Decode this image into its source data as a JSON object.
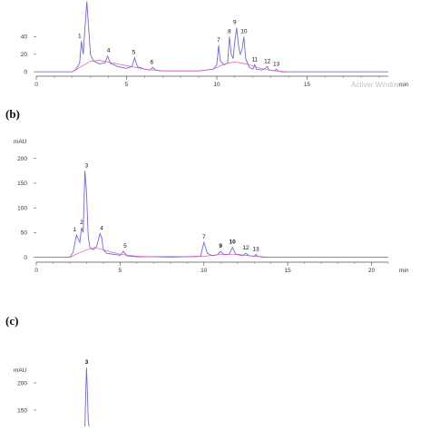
{
  "colors": {
    "trace": "#6b6be0",
    "baseline": "#e05aa8",
    "axis": "#555555",
    "text": "#111111",
    "highlight": "#2f8f8a"
  },
  "watermark": "Activer Windows",
  "chart_data": [
    {
      "type": "line",
      "panel_label": "",
      "yunit": "",
      "xunit": "min",
      "xlim": [
        0,
        19.5
      ],
      "ylim": [
        -5,
        90
      ],
      "xticks": [
        0,
        5,
        10,
        15
      ],
      "yticks": [
        0,
        20,
        40
      ],
      "series": [
        {
          "x": [
            0,
            1,
            2,
            2.2,
            2.4,
            2.5,
            2.6,
            2.7,
            2.8,
            2.9,
            3.0,
            3.1,
            3.2,
            3.5,
            3.8,
            3.95,
            4.1,
            4.5,
            5.0,
            5.3,
            5.45,
            5.6,
            6.0,
            6.3,
            6.45,
            6.6,
            7,
            9,
            9.8,
            10.0,
            10.1,
            10.2,
            10.4,
            10.6,
            10.7,
            10.8,
            10.9,
            11.0,
            11.1,
            11.2,
            11.3,
            11.4,
            11.5,
            11.6,
            11.8,
            12.0,
            12.1,
            12.2,
            12.5,
            12.7,
            12.8,
            12.9,
            13.2,
            13.3,
            13.4,
            13.6,
            14,
            17,
            19.5
          ],
          "y": [
            0,
            0,
            0,
            3,
            10,
            35,
            20,
            50,
            80,
            50,
            20,
            15,
            12,
            9,
            10,
            18,
            10,
            6,
            4,
            6,
            16,
            6,
            3,
            2,
            5,
            2,
            1,
            1,
            3,
            8,
            30,
            12,
            8,
            10,
            40,
            20,
            15,
            35,
            50,
            30,
            20,
            25,
            40,
            15,
            5,
            3,
            8,
            3,
            2,
            4,
            6,
            2,
            1,
            3,
            1,
            0,
            0,
            0,
            0
          ]
        },
        {
          "x": [
            0,
            2,
            2.5,
            3,
            3.5,
            4,
            5,
            6,
            7,
            9,
            9.8,
            10.2,
            10.6,
            11,
            11.4,
            11.8,
            12.4,
            13.2,
            14,
            19.5
          ],
          "y": [
            0,
            0,
            6,
            12,
            13,
            11,
            7,
            3,
            1,
            1,
            3,
            7,
            10,
            11,
            10,
            8,
            4,
            1,
            0,
            0
          ]
        }
      ],
      "peaks": [
        {
          "label": "1",
          "x": 2.4,
          "y": 35
        },
        {
          "label": "4",
          "x": 4.0,
          "y": 18
        },
        {
          "label": "5",
          "x": 5.4,
          "y": 16
        },
        {
          "label": "6",
          "x": 6.4,
          "y": 5
        },
        {
          "label": "7",
          "x": 10.1,
          "y": 30
        },
        {
          "label": "8",
          "x": 10.7,
          "y": 40
        },
        {
          "label": "9",
          "x": 11.0,
          "y": 50
        },
        {
          "label": "10",
          "x": 11.5,
          "y": 40
        },
        {
          "label": "11",
          "x": 12.1,
          "y": 8
        },
        {
          "label": "12",
          "x": 12.8,
          "y": 6
        },
        {
          "label": "13",
          "x": 13.3,
          "y": 3
        }
      ]
    },
    {
      "type": "line",
      "panel_label": "(b)",
      "yunit": "mAU",
      "xunit": "min",
      "xlim": [
        0,
        21
      ],
      "ylim": [
        -10,
        205
      ],
      "xticks": [
        0,
        5,
        10,
        15,
        20
      ],
      "yticks": [
        0,
        50,
        100,
        150,
        200
      ],
      "series": [
        {
          "x": [
            0,
            1,
            2,
            2.2,
            2.4,
            2.6,
            2.7,
            2.8,
            2.9,
            3.0,
            3.1,
            3.2,
            3.4,
            3.6,
            3.8,
            3.9,
            4.0,
            4.2,
            5.0,
            5.2,
            5.4,
            6,
            9,
            9.8,
            10.0,
            10.2,
            10.5,
            10.8,
            11.0,
            11.2,
            11.5,
            11.7,
            11.9,
            12.3,
            12.5,
            12.7,
            13.0,
            13.1,
            13.2,
            13.5,
            14,
            21
          ],
          "y": [
            0,
            0,
            0,
            10,
            45,
            30,
            60,
            50,
            175,
            130,
            40,
            20,
            15,
            22,
            48,
            40,
            15,
            8,
            4,
            12,
            3,
            1,
            1,
            2,
            30,
            8,
            3,
            5,
            12,
            5,
            6,
            20,
            6,
            3,
            8,
            3,
            2,
            6,
            2,
            0,
            0,
            0
          ]
        },
        {
          "x": [
            0,
            2,
            2.5,
            3,
            3.5,
            4,
            5,
            6,
            8,
            10,
            11,
            12,
            13,
            14,
            21
          ],
          "y": [
            0,
            0,
            8,
            15,
            20,
            15,
            6,
            2,
            0,
            2,
            6,
            6,
            2,
            0,
            0
          ]
        }
      ],
      "peaks": [
        {
          "label": "1",
          "x": 2.3,
          "y": 45
        },
        {
          "label": "2",
          "x": 2.7,
          "y": 60
        },
        {
          "label": "3",
          "x": 3.0,
          "y": 175
        },
        {
          "label": "4",
          "x": 3.9,
          "y": 48
        },
        {
          "label": "5",
          "x": 5.3,
          "y": 12
        },
        {
          "label": "7",
          "x": 10.0,
          "y": 30
        },
        {
          "label": "9",
          "x": 11.0,
          "y": 12
        },
        {
          "label": "10",
          "x": 11.7,
          "y": 20
        },
        {
          "label": "12",
          "x": 12.5,
          "y": 8
        },
        {
          "label": "13",
          "x": 13.1,
          "y": 6
        }
      ]
    },
    {
      "type": "line",
      "panel_label": "(c)",
      "yunit": "mAU",
      "xunit": "",
      "xlim": [
        0,
        21
      ],
      "ylim": [
        120,
        240
      ],
      "xticks": [],
      "yticks": [
        150,
        200
      ],
      "series": [
        {
          "x": [
            2.9,
            2.95,
            3.0,
            3.05,
            3.1,
            3.15
          ],
          "y": [
            120,
            180,
            228,
            180,
            130,
            120
          ]
        }
      ],
      "peaks": [
        {
          "label": "3",
          "x": 3.0,
          "y": 228
        }
      ]
    }
  ]
}
